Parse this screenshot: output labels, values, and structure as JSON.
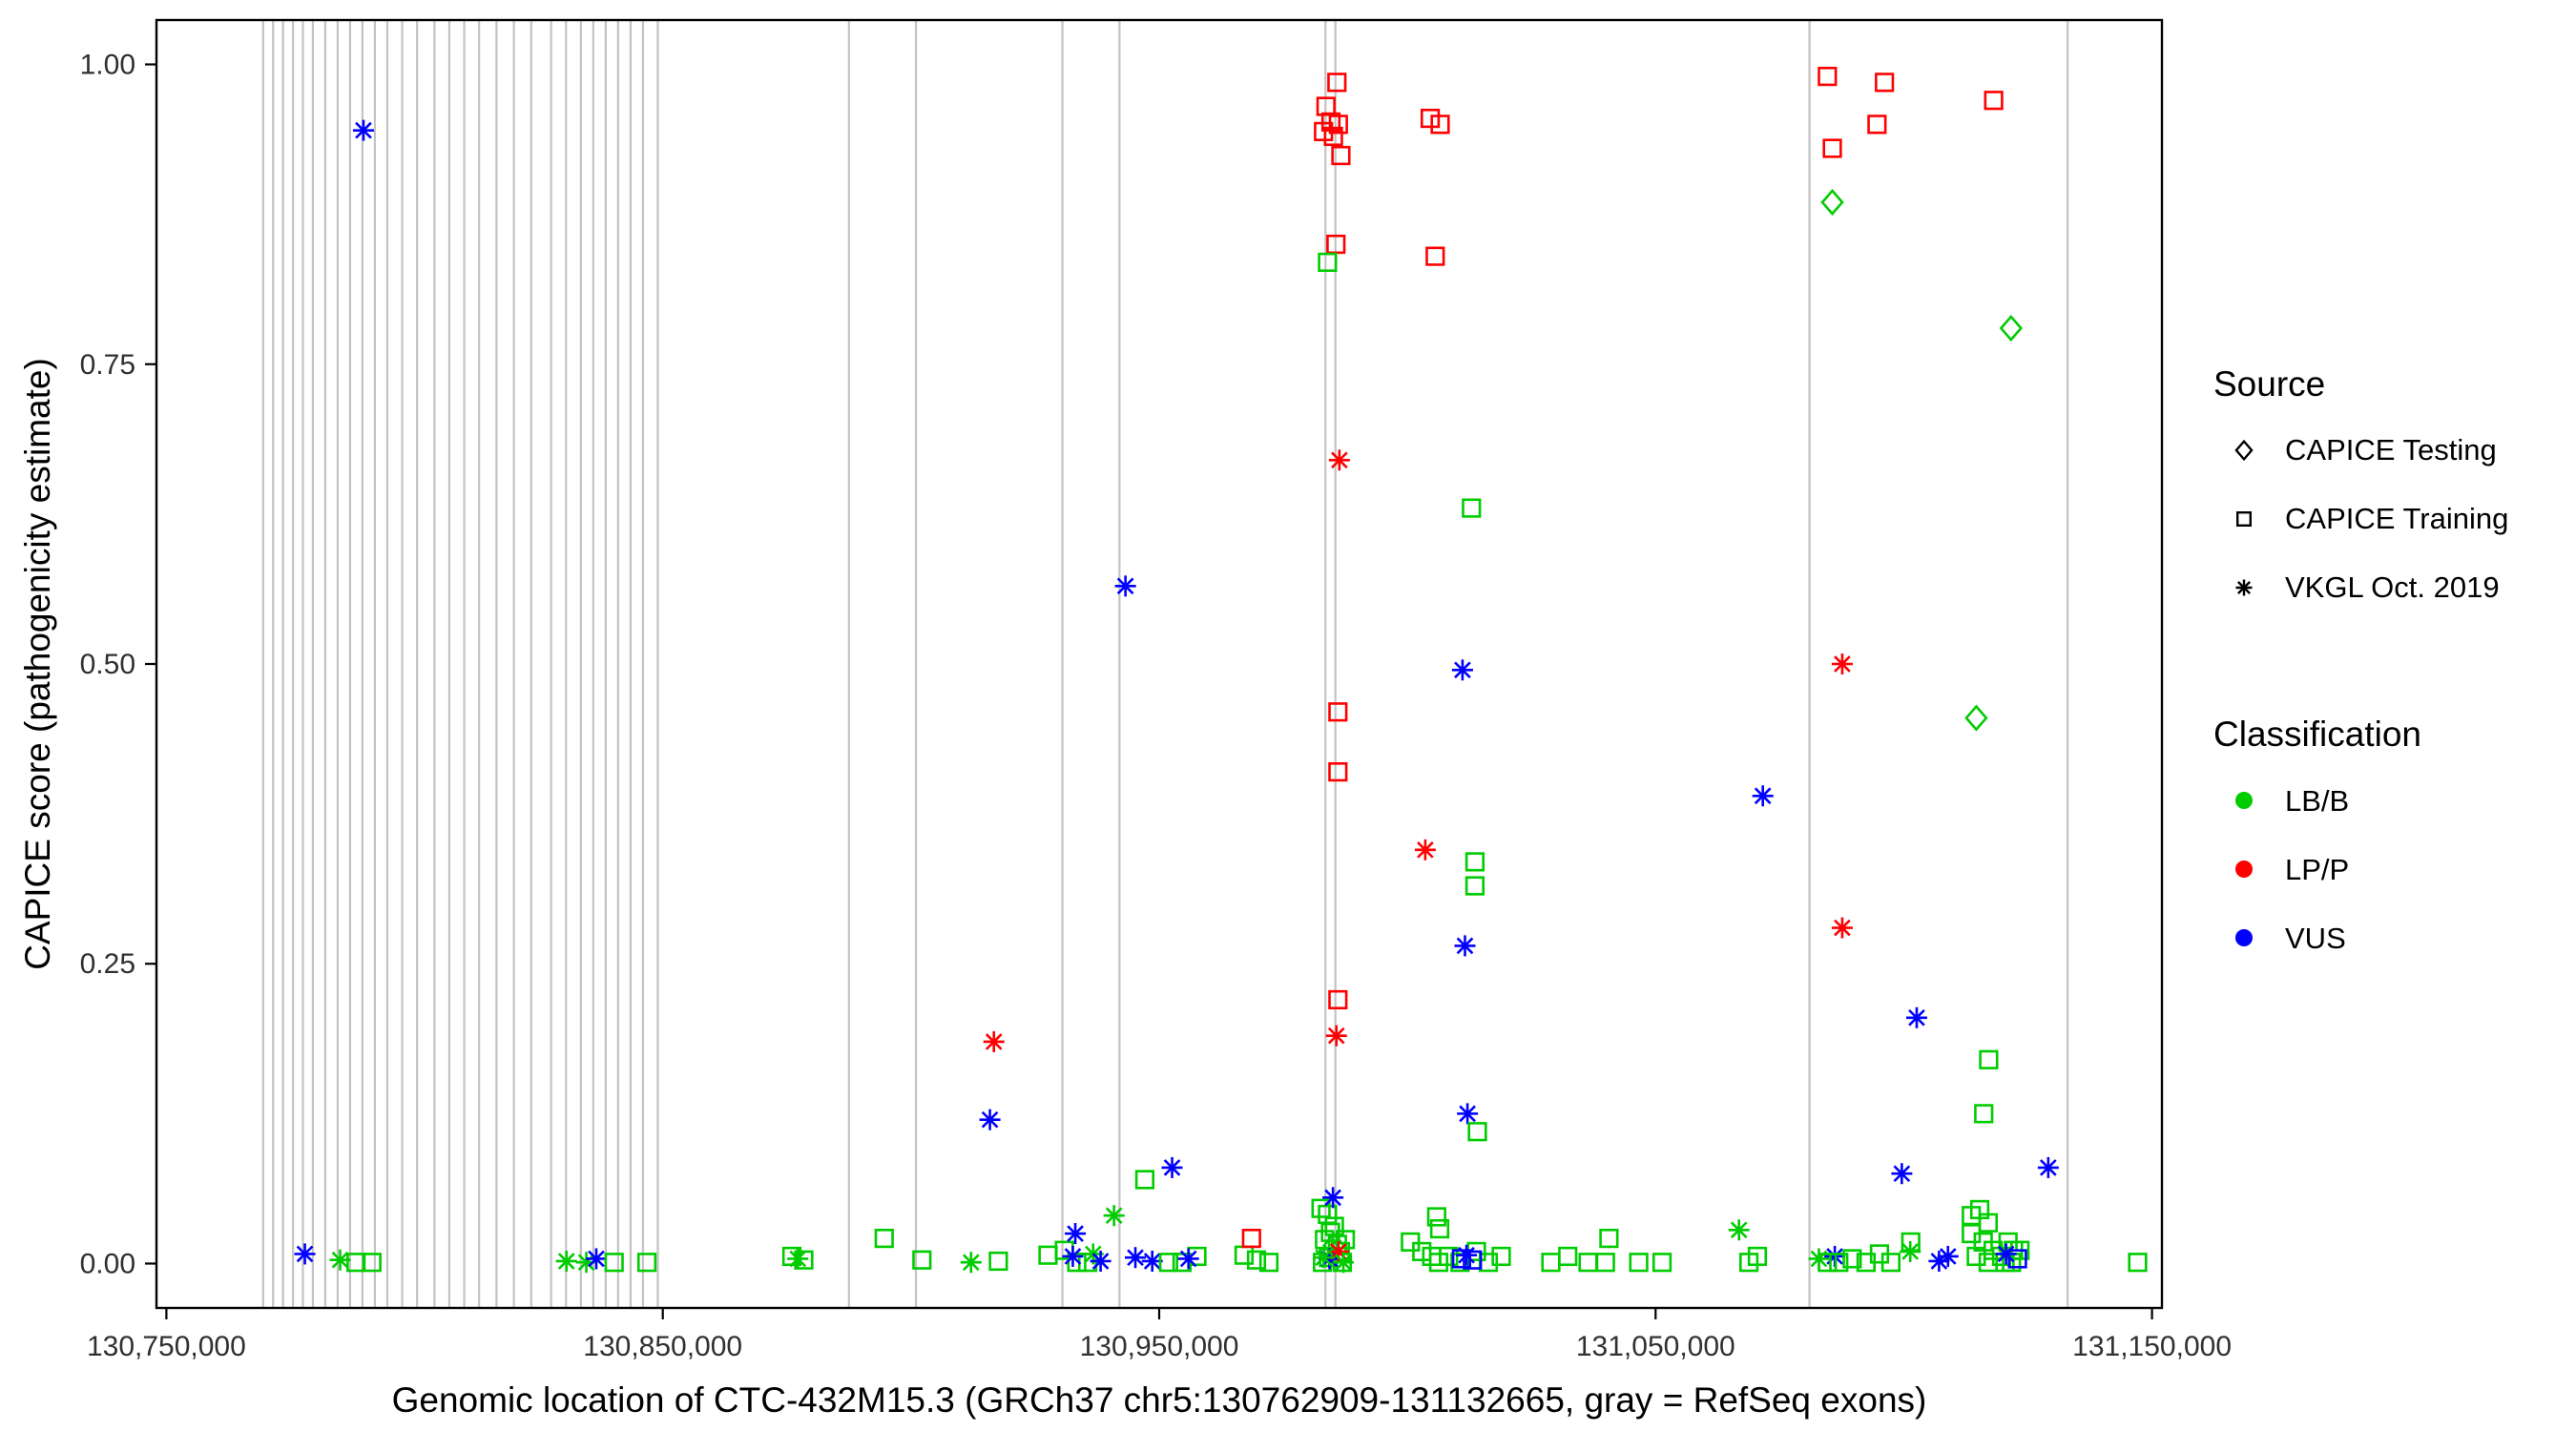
{
  "chart_data": {
    "type": "scatter",
    "title": "",
    "xlabel": "Genomic location of CTC-432M15.3 (GRCh37 chr5:130762909-131132665, gray = RefSeq exons)",
    "ylabel": "CAPICE score (pathogenicity estimate)",
    "xlim": [
      130750000,
      131150000
    ],
    "ylim": [
      0,
      1
    ],
    "grid": "none",
    "legend_position": "right",
    "x_ticks": [
      130750000,
      130850000,
      130950000,
      131050000,
      131150000
    ],
    "x_tick_labels": [
      "130,750,000",
      "130,850,000",
      "130,950,000",
      "131,050,000",
      "131,150,000"
    ],
    "y_ticks": [
      0,
      0.25,
      0.5,
      0.75,
      1.0
    ],
    "y_tick_labels": [
      "0.00",
      "0.25",
      "0.50",
      "0.75",
      "1.00"
    ],
    "exon_color": "#C3C3C3",
    "exon_lines": [
      130769500,
      130771500,
      130773500,
      130775500,
      130777500,
      130779500,
      130782000,
      130784500,
      130787000,
      130789500,
      130792000,
      130794500,
      130797500,
      130800500,
      130804000,
      130807000,
      130810000,
      130813000,
      130816500,
      130820000,
      130823500,
      130827500,
      130830500,
      130833500,
      130836000,
      130838500,
      130841000,
      130843500,
      130846000,
      130849000,
      130887500,
      130901000,
      130930500,
      130942000,
      130983500,
      130985500,
      131081000,
      131133000
    ],
    "colors": {
      "LB/B": "#00CC00",
      "LP/P": "#FF0000",
      "VUS": "#0000FF"
    },
    "legend": {
      "source_title": "Source",
      "sources": [
        {
          "id": "testing",
          "label": "CAPICE Testing",
          "symbol": "diamond"
        },
        {
          "id": "training",
          "label": "CAPICE Training",
          "symbol": "square"
        },
        {
          "id": "vkgl",
          "label": "VKGL Oct. 2019",
          "symbol": "asterisk"
        }
      ],
      "classification_title": "Classification",
      "classes": [
        {
          "id": "LB/B",
          "label": "LB/B"
        },
        {
          "id": "LP/P",
          "label": "LP/P"
        },
        {
          "id": "VUS",
          "label": "VUS"
        }
      ]
    },
    "points": [
      [
        130789700,
        0.945,
        "vkgl",
        "VUS"
      ],
      [
        130777900,
        0.008,
        "vkgl",
        "VUS"
      ],
      [
        130785000,
        0.003,
        "vkgl",
        "LB/B"
      ],
      [
        130788200,
        0.001,
        "training",
        "LB/B"
      ],
      [
        130791400,
        0.001,
        "training",
        "LB/B"
      ],
      [
        130830600,
        0.002,
        "vkgl",
        "LB/B"
      ],
      [
        130834600,
        0.001,
        "vkgl",
        "LB/B"
      ],
      [
        130836600,
        0.004,
        "vkgl",
        "VUS"
      ],
      [
        130840200,
        0.001,
        "training",
        "LB/B"
      ],
      [
        130846800,
        0.001,
        "training",
        "LB/B"
      ],
      [
        130876000,
        0.006,
        "training",
        "LB/B"
      ],
      [
        130878400,
        0.003,
        "training",
        "LB/B"
      ],
      [
        130877200,
        0.004,
        "vkgl",
        "LB/B"
      ],
      [
        130894600,
        0.021,
        "training",
        "LB/B"
      ],
      [
        130902200,
        0.003,
        "training",
        "LB/B"
      ],
      [
        130912100,
        0.001,
        "vkgl",
        "LB/B"
      ],
      [
        130917600,
        0.002,
        "training",
        "LB/B"
      ],
      [
        130916700,
        0.185,
        "vkgl",
        "LP/P"
      ],
      [
        130915900,
        0.12,
        "vkgl",
        "VUS"
      ],
      [
        130927600,
        0.007,
        "training",
        "LB/B"
      ],
      [
        130930900,
        0.011,
        "training",
        "LB/B"
      ],
      [
        130933100,
        0.025,
        "vkgl",
        "VUS"
      ],
      [
        130933400,
        0.001,
        "training",
        "LB/B"
      ],
      [
        130935600,
        0.001,
        "training",
        "LB/B"
      ],
      [
        130936700,
        0.008,
        "vkgl",
        "LB/B"
      ],
      [
        130932600,
        0.006,
        "vkgl",
        "VUS"
      ],
      [
        130938200,
        0.002,
        "vkgl",
        "VUS"
      ],
      [
        130943200,
        0.565,
        "vkgl",
        "VUS"
      ],
      [
        130940900,
        0.04,
        "vkgl",
        "LB/B"
      ],
      [
        130947100,
        0.07,
        "training",
        "LB/B"
      ],
      [
        130945200,
        0.005,
        "vkgl",
        "VUS"
      ],
      [
        130948600,
        0.002,
        "vkgl",
        "VUS"
      ],
      [
        130952600,
        0.08,
        "vkgl",
        "VUS"
      ],
      [
        130951900,
        0.001,
        "training",
        "LB/B"
      ],
      [
        130954600,
        0.001,
        "training",
        "LB/B"
      ],
      [
        130957600,
        0.006,
        "training",
        "LB/B"
      ],
      [
        130955900,
        0.004,
        "vkgl",
        "VUS"
      ],
      [
        130967100,
        0.007,
        "training",
        "LB/B"
      ],
      [
        130969600,
        0.003,
        "training",
        "LB/B"
      ],
      [
        130972100,
        0.001,
        "training",
        "LB/B"
      ],
      [
        130968600,
        0.021,
        "training",
        "LP/P"
      ],
      [
        130985800,
        0.985,
        "training",
        "LP/P"
      ],
      [
        130983600,
        0.965,
        "training",
        "LP/P"
      ],
      [
        130984600,
        0.952,
        "training",
        "LP/P"
      ],
      [
        130986100,
        0.95,
        "training",
        "LP/P"
      ],
      [
        130983100,
        0.944,
        "training",
        "LP/P"
      ],
      [
        130985100,
        0.94,
        "training",
        "LP/P"
      ],
      [
        130986600,
        0.924,
        "training",
        "LP/P"
      ],
      [
        130985600,
        0.85,
        "training",
        "LP/P"
      ],
      [
        130983900,
        0.835,
        "training",
        "LB/B"
      ],
      [
        130986300,
        0.67,
        "vkgl",
        "LP/P"
      ],
      [
        130986000,
        0.46,
        "training",
        "LP/P"
      ],
      [
        130986000,
        0.41,
        "training",
        "LP/P"
      ],
      [
        130986000,
        0.22,
        "training",
        "LP/P"
      ],
      [
        130985700,
        0.19,
        "vkgl",
        "LP/P"
      ],
      [
        130982600,
        0.046,
        "training",
        "LB/B"
      ],
      [
        130983900,
        0.041,
        "training",
        "LB/B"
      ],
      [
        130985300,
        0.031,
        "training",
        "LB/B"
      ],
      [
        130984500,
        0.026,
        "training",
        "LB/B"
      ],
      [
        130983300,
        0.02,
        "training",
        "LB/B"
      ],
      [
        130985900,
        0.016,
        "training",
        "LB/B"
      ],
      [
        130986500,
        0.01,
        "training",
        "LB/B"
      ],
      [
        130984100,
        0.005,
        "training",
        "LB/B"
      ],
      [
        130982900,
        0.001,
        "training",
        "LB/B"
      ],
      [
        130986900,
        0.001,
        "training",
        "LB/B"
      ],
      [
        130987500,
        0.02,
        "training",
        "LB/B"
      ],
      [
        130985000,
        0.055,
        "vkgl",
        "VUS"
      ],
      [
        130984300,
        0.004,
        "vkgl",
        "VUS"
      ],
      [
        130985200,
        0.015,
        "testing",
        "LB/B"
      ],
      [
        130986100,
        0.01,
        "vkgl",
        "LP/P"
      ],
      [
        130983100,
        0.005,
        "vkgl",
        "LB/B"
      ],
      [
        130987100,
        0.001,
        "vkgl",
        "LB/B"
      ],
      [
        131004600,
        0.955,
        "training",
        "LP/P"
      ],
      [
        131006600,
        0.95,
        "training",
        "LP/P"
      ],
      [
        131005600,
        0.84,
        "training",
        "LP/P"
      ],
      [
        131003600,
        0.345,
        "vkgl",
        "LP/P"
      ],
      [
        131012900,
        0.63,
        "training",
        "LB/B"
      ],
      [
        131011100,
        0.495,
        "vkgl",
        "VUS"
      ],
      [
        131011600,
        0.265,
        "vkgl",
        "VUS"
      ],
      [
        131013600,
        0.335,
        "training",
        "LB/B"
      ],
      [
        131013600,
        0.315,
        "training",
        "LB/B"
      ],
      [
        131012100,
        0.125,
        "vkgl",
        "VUS"
      ],
      [
        131014100,
        0.11,
        "training",
        "LB/B"
      ],
      [
        131000600,
        0.018,
        "training",
        "LB/B"
      ],
      [
        131002900,
        0.01,
        "training",
        "LB/B"
      ],
      [
        131004900,
        0.006,
        "training",
        "LB/B"
      ],
      [
        131006300,
        0.001,
        "training",
        "LB/B"
      ],
      [
        131008300,
        0.006,
        "training",
        "LB/B"
      ],
      [
        131010600,
        0.001,
        "training",
        "LB/B"
      ],
      [
        131005900,
        0.039,
        "training",
        "LB/B"
      ],
      [
        131006500,
        0.029,
        "training",
        "LB/B"
      ],
      [
        131013900,
        0.01,
        "training",
        "LB/B"
      ],
      [
        131016300,
        0.001,
        "training",
        "LB/B"
      ],
      [
        131018900,
        0.006,
        "training",
        "LB/B"
      ],
      [
        131011900,
        0.007,
        "vkgl",
        "VUS"
      ],
      [
        131010900,
        0.004,
        "training",
        "VUS"
      ],
      [
        131013100,
        0.003,
        "training",
        "VUS"
      ],
      [
        131028900,
        0.001,
        "training",
        "LB/B"
      ],
      [
        131032300,
        0.006,
        "training",
        "LB/B"
      ],
      [
        131036400,
        0.001,
        "training",
        "LB/B"
      ],
      [
        131040600,
        0.021,
        "training",
        "LB/B"
      ],
      [
        131039900,
        0.001,
        "training",
        "LB/B"
      ],
      [
        131046600,
        0.001,
        "training",
        "LB/B"
      ],
      [
        131051300,
        0.001,
        "training",
        "LB/B"
      ],
      [
        131066800,
        0.028,
        "vkgl",
        "LB/B"
      ],
      [
        131068800,
        0.001,
        "training",
        "LB/B"
      ],
      [
        131070500,
        0.006,
        "training",
        "LB/B"
      ],
      [
        131071600,
        0.39,
        "vkgl",
        "VUS"
      ],
      [
        131084600,
        0.99,
        "training",
        "LP/P"
      ],
      [
        131096100,
        0.985,
        "training",
        "LP/P"
      ],
      [
        131085600,
        0.93,
        "training",
        "LP/P"
      ],
      [
        131094600,
        0.95,
        "training",
        "LP/P"
      ],
      [
        131118100,
        0.97,
        "training",
        "LP/P"
      ],
      [
        131085600,
        0.885,
        "testing",
        "LB/B"
      ],
      [
        131121600,
        0.78,
        "testing",
        "LB/B"
      ],
      [
        131114600,
        0.455,
        "testing",
        "LB/B"
      ],
      [
        131087600,
        0.5,
        "vkgl",
        "LP/P"
      ],
      [
        131087600,
        0.28,
        "vkgl",
        "LP/P"
      ],
      [
        131102600,
        0.205,
        "vkgl",
        "VUS"
      ],
      [
        131099600,
        0.075,
        "vkgl",
        "VUS"
      ],
      [
        131129100,
        0.08,
        "vkgl",
        "VUS"
      ],
      [
        131117100,
        0.17,
        "training",
        "LB/B"
      ],
      [
        131116100,
        0.125,
        "training",
        "LB/B"
      ],
      [
        131082900,
        0.004,
        "vkgl",
        "LB/B"
      ],
      [
        131086100,
        0.006,
        "vkgl",
        "VUS"
      ],
      [
        131084600,
        0.001,
        "training",
        "LB/B"
      ],
      [
        131086900,
        0.001,
        "training",
        "LB/B"
      ],
      [
        131089600,
        0.004,
        "training",
        "LB/B"
      ],
      [
        131092400,
        0.001,
        "training",
        "LB/B"
      ],
      [
        131095100,
        0.008,
        "training",
        "LB/B"
      ],
      [
        131097400,
        0.001,
        "training",
        "LB/B"
      ],
      [
        131101300,
        0.01,
        "vkgl",
        "LB/B"
      ],
      [
        131101400,
        0.018,
        "training",
        "LB/B"
      ],
      [
        131107100,
        0.002,
        "vkgl",
        "VUS"
      ],
      [
        131108900,
        0.006,
        "vkgl",
        "VUS"
      ],
      [
        131113600,
        0.04,
        "training",
        "LB/B"
      ],
      [
        131115300,
        0.045,
        "training",
        "LB/B"
      ],
      [
        131117000,
        0.034,
        "training",
        "LB/B"
      ],
      [
        131113600,
        0.025,
        "training",
        "LB/B"
      ],
      [
        131116000,
        0.018,
        "training",
        "LB/B"
      ],
      [
        131118000,
        0.011,
        "training",
        "LB/B"
      ],
      [
        131119700,
        0.006,
        "training",
        "LB/B"
      ],
      [
        131114600,
        0.006,
        "training",
        "LB/B"
      ],
      [
        131117000,
        0.001,
        "training",
        "LB/B"
      ],
      [
        131120400,
        0.001,
        "training",
        "LB/B"
      ],
      [
        131122100,
        0.011,
        "training",
        "LB/B"
      ],
      [
        131121000,
        0.018,
        "training",
        "LB/B"
      ],
      [
        131123400,
        0.011,
        "training",
        "LB/B"
      ],
      [
        131121700,
        0.001,
        "training",
        "LB/B"
      ],
      [
        131120600,
        0.008,
        "vkgl",
        "VUS"
      ],
      [
        131122900,
        0.004,
        "training",
        "VUS"
      ],
      [
        131147100,
        0.001,
        "training",
        "LB/B"
      ]
    ]
  }
}
